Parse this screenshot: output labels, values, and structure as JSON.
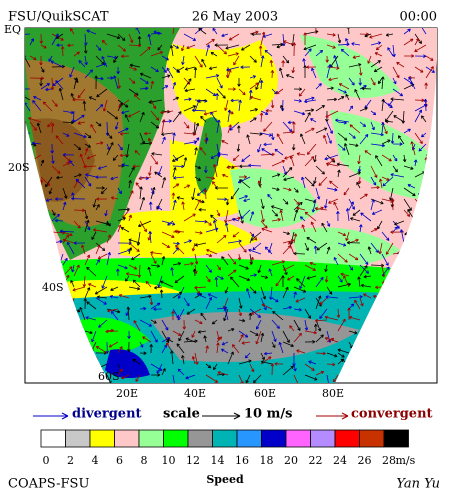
{
  "header": {
    "left": "FSU/QuikSCAT",
    "center": "26 May 2003",
    "right": "00:00"
  },
  "lat_labels": [
    "EQ",
    "20S",
    "40S",
    "60S"
  ],
  "lon_labels": [
    "20E",
    "40E",
    "60E",
    "80E"
  ],
  "legend": {
    "divergent": "divergent",
    "scale": "scale",
    "scale_value": "10 m/s",
    "convergent": "convergent"
  },
  "colorbar": {
    "labels": [
      0,
      2,
      4,
      6,
      8,
      10,
      12,
      14,
      16,
      18,
      20,
      22,
      24,
      26,
      28
    ],
    "unit": "m/s",
    "title": "Speed",
    "colors": [
      "#ffffff",
      "#c8c8c8",
      "#ffff00",
      "#ffc8c8",
      "#96ff96",
      "#00ff00",
      "#969696",
      "#00b4b4",
      "#2896ff",
      "#0000c8",
      "#ff64ff",
      "#b48cff",
      "#ff0000",
      "#c83200",
      "#000000"
    ]
  },
  "footer": {
    "left": "COAPS-FSU",
    "right": "Yan Yu"
  }
}
